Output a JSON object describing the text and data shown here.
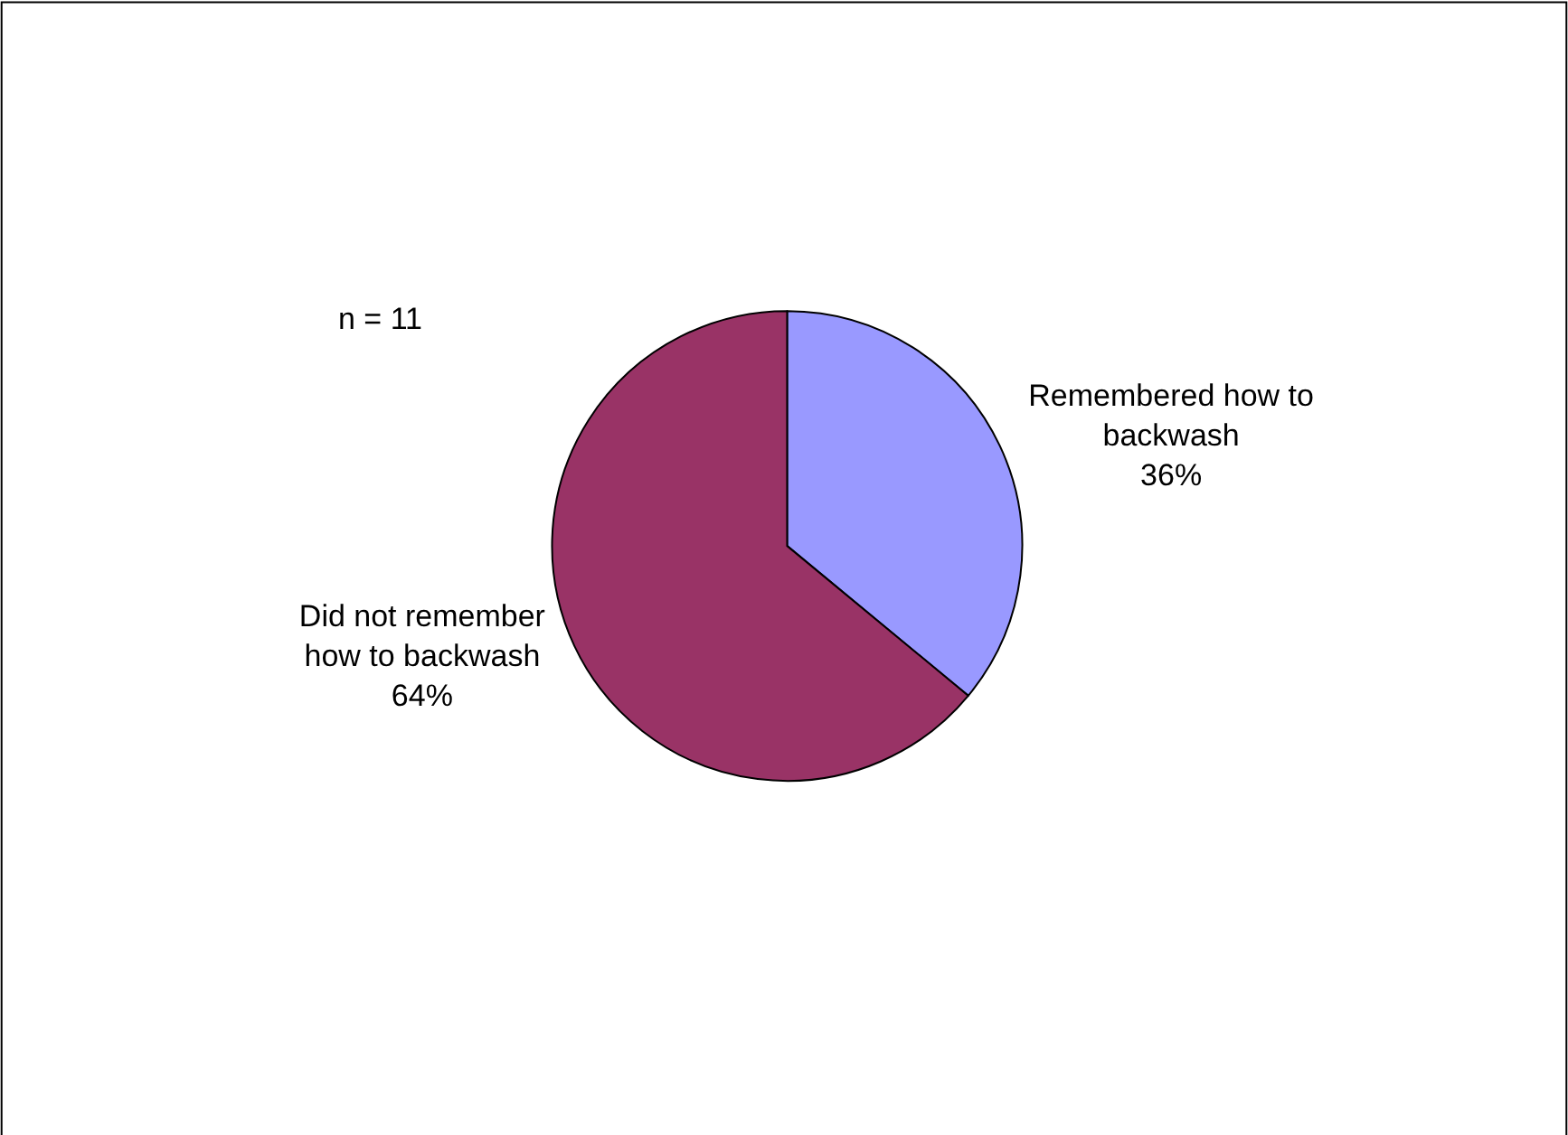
{
  "chart_data": {
    "type": "pie",
    "categories": [
      "Remembered how to backwash",
      "Did not remember how to backwash"
    ],
    "values": [
      36,
      64
    ],
    "colors": [
      "#9999ff",
      "#993366"
    ],
    "value_labels": [
      "36%",
      "64%"
    ],
    "legend": false,
    "annotations": [
      "n = 11"
    ]
  }
}
